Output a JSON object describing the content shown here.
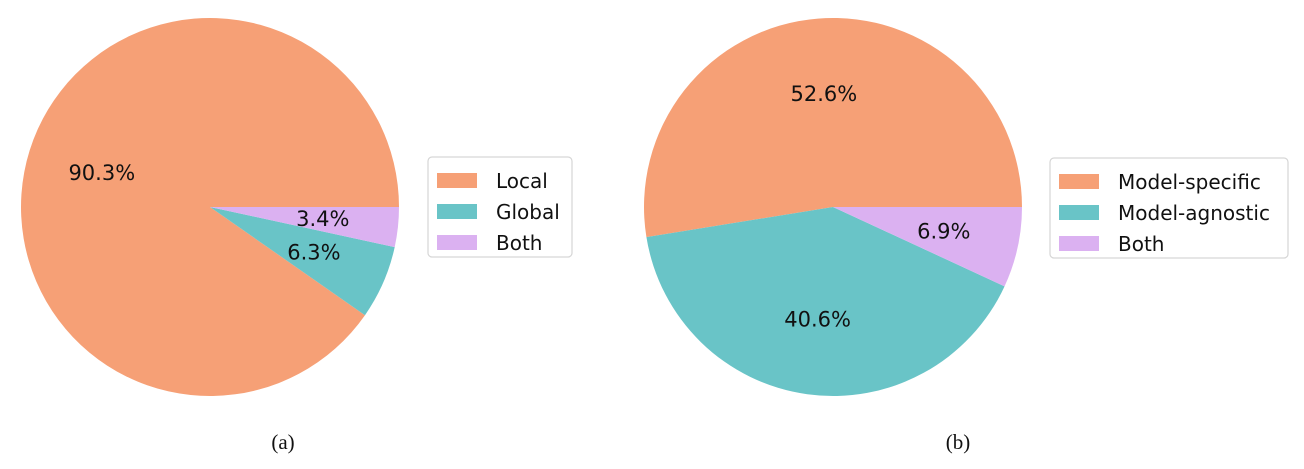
{
  "chart_data": [
    {
      "type": "pie",
      "caption": "(a)",
      "categories": [
        "Local",
        "Global",
        "Both"
      ],
      "values": [
        90.3,
        6.3,
        3.4
      ],
      "value_labels": [
        "90.3%",
        "6.3%",
        "3.4%"
      ],
      "colors": [
        "#f6a076",
        "#69c4c7",
        "#dbb1f1"
      ],
      "start": "east, counterclockwise",
      "legend_position": "right"
    },
    {
      "type": "pie",
      "caption": "(b)",
      "categories": [
        "Model-specific",
        "Model-agnostic",
        "Both"
      ],
      "values": [
        52.6,
        40.6,
        6.9
      ],
      "value_labels": [
        "52.6%",
        "40.6%",
        "6.9%"
      ],
      "colors": [
        "#f6a076",
        "#69c4c7",
        "#dbb1f1"
      ],
      "start": "east, counterclockwise",
      "legend_position": "right"
    }
  ]
}
